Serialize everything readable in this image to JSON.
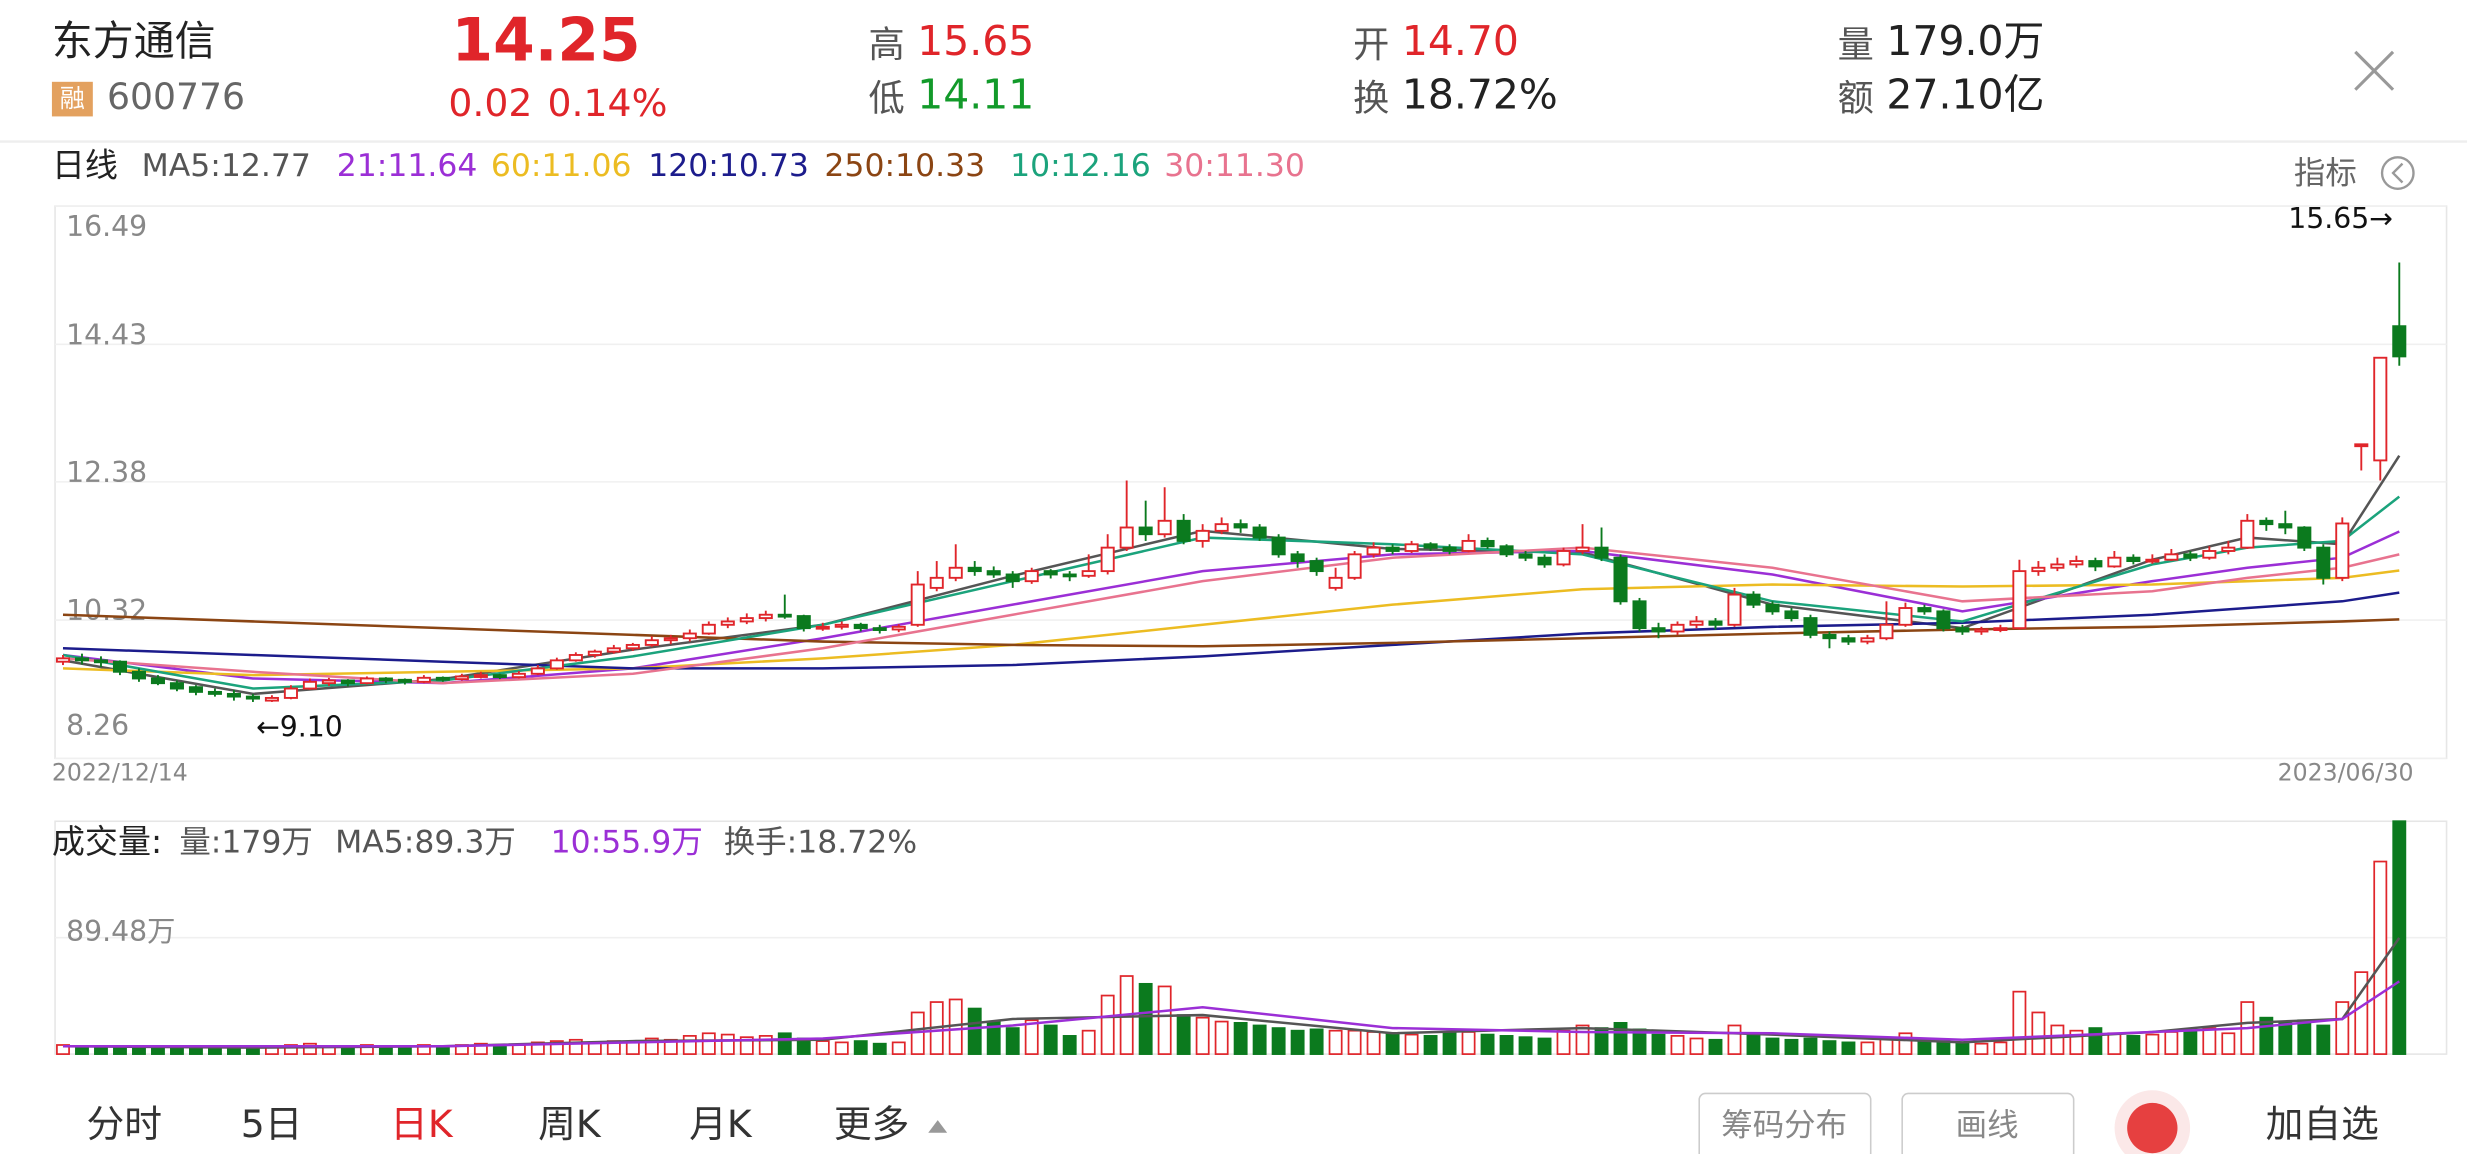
{
  "header": {
    "name": "东方通信",
    "badge": "融",
    "code": "600776",
    "price": "14.25",
    "change": "0.02",
    "change_pct": "0.14%",
    "high_label": "高",
    "high": "15.65",
    "low_label": "低",
    "low": "14.11",
    "open_label": "开",
    "open": "14.70",
    "turnover_label": "换",
    "turnover": "18.72%",
    "volume_label": "量",
    "volume": "179.0万",
    "amount_label": "额",
    "amount": "27.10亿"
  },
  "indicator_button": "指标",
  "tabs": [
    "分时",
    "5日",
    "日K",
    "周K",
    "月K",
    "更多"
  ],
  "buttons": [
    "筹码分布",
    "画线",
    "加自选"
  ],
  "chart_data": [
    {
      "type": "candlestick",
      "title": "日线",
      "ylim": [
        8.26,
        16.49
      ],
      "yticks": [
        16.49,
        14.43,
        12.38,
        10.32,
        8.26
      ],
      "grid": true,
      "date_labels": [
        "2022/12/14",
        "2023/06/30"
      ],
      "max_label": "15.65→",
      "min_label": "←9.10",
      "up_color": "#e0252a",
      "down_color": "#0b7a1e",
      "ohlc": [
        [
          9.7,
          9.8,
          9.65,
          9.75
        ],
        [
          9.75,
          9.82,
          9.66,
          9.72
        ],
        [
          9.72,
          9.78,
          9.62,
          9.7
        ],
        [
          9.7,
          9.72,
          9.5,
          9.55
        ],
        [
          9.55,
          9.6,
          9.4,
          9.45
        ],
        [
          9.45,
          9.5,
          9.35,
          9.38
        ],
        [
          9.38,
          9.42,
          9.26,
          9.3
        ],
        [
          9.32,
          9.35,
          9.2,
          9.25
        ],
        [
          9.25,
          9.3,
          9.18,
          9.22
        ],
        [
          9.22,
          9.28,
          9.12,
          9.18
        ],
        [
          9.18,
          9.22,
          9.1,
          9.15
        ],
        [
          9.12,
          9.2,
          9.1,
          9.16
        ],
        [
          9.16,
          9.35,
          9.14,
          9.3
        ],
        [
          9.3,
          9.45,
          9.28,
          9.4
        ],
        [
          9.38,
          9.46,
          9.34,
          9.42
        ],
        [
          9.42,
          9.44,
          9.33,
          9.38
        ],
        [
          9.38,
          9.48,
          9.36,
          9.45
        ],
        [
          9.45,
          9.47,
          9.38,
          9.43
        ],
        [
          9.43,
          9.45,
          9.36,
          9.4
        ],
        [
          9.4,
          9.5,
          9.38,
          9.46
        ],
        [
          9.46,
          9.48,
          9.4,
          9.44
        ],
        [
          9.44,
          9.52,
          9.42,
          9.48
        ],
        [
          9.48,
          9.55,
          9.45,
          9.5
        ],
        [
          9.5,
          9.52,
          9.44,
          9.47
        ],
        [
          9.47,
          9.56,
          9.45,
          9.52
        ],
        [
          9.52,
          9.65,
          9.5,
          9.6
        ],
        [
          9.6,
          9.76,
          9.58,
          9.72
        ],
        [
          9.72,
          9.84,
          9.7,
          9.8
        ],
        [
          9.8,
          9.88,
          9.76,
          9.85
        ],
        [
          9.85,
          9.95,
          9.82,
          9.9
        ],
        [
          9.9,
          9.98,
          9.86,
          9.95
        ],
        [
          9.95,
          10.08,
          9.92,
          10.02
        ],
        [
          10.02,
          10.1,
          9.96,
          10.05
        ],
        [
          10.05,
          10.18,
          10.0,
          10.12
        ],
        [
          10.12,
          10.3,
          10.1,
          10.25
        ],
        [
          10.25,
          10.36,
          10.2,
          10.3
        ],
        [
          10.3,
          10.42,
          10.26,
          10.35
        ],
        [
          10.35,
          10.46,
          10.3,
          10.4
        ],
        [
          10.4,
          10.7,
          10.34,
          10.38
        ],
        [
          10.38,
          10.4,
          10.15,
          10.2
        ],
        [
          10.2,
          10.28,
          10.16,
          10.22
        ],
        [
          10.22,
          10.3,
          10.18,
          10.25
        ],
        [
          10.25,
          10.28,
          10.15,
          10.2
        ],
        [
          10.2,
          10.25,
          10.12,
          10.18
        ],
        [
          10.18,
          10.26,
          10.14,
          10.22
        ],
        [
          10.25,
          11.05,
          10.22,
          10.85
        ],
        [
          10.8,
          11.2,
          10.75,
          10.95
        ],
        [
          10.95,
          11.45,
          10.9,
          11.1
        ],
        [
          11.1,
          11.2,
          10.98,
          11.05
        ],
        [
          11.05,
          11.12,
          10.95,
          11.0
        ],
        [
          11.0,
          11.05,
          10.8,
          10.9
        ],
        [
          10.9,
          11.1,
          10.86,
          11.05
        ],
        [
          11.05,
          11.08,
          10.94,
          11.0
        ],
        [
          11.0,
          11.05,
          10.9,
          10.98
        ],
        [
          10.98,
          11.3,
          10.95,
          11.05
        ],
        [
          11.05,
          11.6,
          11.0,
          11.4
        ],
        [
          11.4,
          12.4,
          11.35,
          11.7
        ],
        [
          11.7,
          12.1,
          11.5,
          11.6
        ],
        [
          11.6,
          12.3,
          11.55,
          11.8
        ],
        [
          11.8,
          11.9,
          11.45,
          11.5
        ],
        [
          11.5,
          11.75,
          11.4,
          11.65
        ],
        [
          11.65,
          11.85,
          11.6,
          11.75
        ],
        [
          11.75,
          11.82,
          11.62,
          11.7
        ],
        [
          11.7,
          11.75,
          11.5,
          11.55
        ],
        [
          11.55,
          11.6,
          11.25,
          11.3
        ],
        [
          11.3,
          11.35,
          11.1,
          11.2
        ],
        [
          11.2,
          11.25,
          10.98,
          11.05
        ],
        [
          10.8,
          11.1,
          10.76,
          10.95
        ],
        [
          10.95,
          11.35,
          10.92,
          11.3
        ],
        [
          11.3,
          11.48,
          11.25,
          11.4
        ],
        [
          11.4,
          11.45,
          11.3,
          11.35
        ],
        [
          11.35,
          11.5,
          11.32,
          11.45
        ],
        [
          11.45,
          11.48,
          11.35,
          11.4
        ],
        [
          11.4,
          11.45,
          11.3,
          11.35
        ],
        [
          11.35,
          11.6,
          11.33,
          11.5
        ],
        [
          11.5,
          11.55,
          11.38,
          11.42
        ],
        [
          11.42,
          11.45,
          11.26,
          11.3
        ],
        [
          11.3,
          11.35,
          11.2,
          11.25
        ],
        [
          11.25,
          11.3,
          11.1,
          11.15
        ],
        [
          11.15,
          11.4,
          11.12,
          11.35
        ],
        [
          11.35,
          11.75,
          11.3,
          11.4
        ],
        [
          11.4,
          11.7,
          11.2,
          11.25
        ],
        [
          11.25,
          11.3,
          10.55,
          10.6
        ],
        [
          10.6,
          10.65,
          10.15,
          10.2
        ],
        [
          10.2,
          10.28,
          10.05,
          10.15
        ],
        [
          10.15,
          10.3,
          10.1,
          10.25
        ],
        [
          10.25,
          10.38,
          10.2,
          10.3
        ],
        [
          10.3,
          10.35,
          10.18,
          10.25
        ],
        [
          10.25,
          10.8,
          10.22,
          10.7
        ],
        [
          10.7,
          10.75,
          10.5,
          10.55
        ],
        [
          10.55,
          10.6,
          10.4,
          10.45
        ],
        [
          10.45,
          10.5,
          10.3,
          10.35
        ],
        [
          10.35,
          10.4,
          10.05,
          10.1
        ],
        [
          10.1,
          10.15,
          9.9,
          10.05
        ],
        [
          10.05,
          10.1,
          9.95,
          10.0
        ],
        [
          10.0,
          10.1,
          9.96,
          10.05
        ],
        [
          10.05,
          10.6,
          10.02,
          10.25
        ],
        [
          10.25,
          10.58,
          10.22,
          10.5
        ],
        [
          10.5,
          10.55,
          10.4,
          10.45
        ],
        [
          10.45,
          10.48,
          10.15,
          10.2
        ],
        [
          10.2,
          10.25,
          10.1,
          10.15
        ],
        [
          10.15,
          10.22,
          10.1,
          10.18
        ],
        [
          10.18,
          10.25,
          10.14,
          10.2
        ],
        [
          10.2,
          11.22,
          10.18,
          11.05
        ],
        [
          11.05,
          11.2,
          10.98,
          11.1
        ],
        [
          11.1,
          11.25,
          11.05,
          11.15
        ],
        [
          11.15,
          11.28,
          11.1,
          11.2
        ],
        [
          11.2,
          11.25,
          11.05,
          11.12
        ],
        [
          11.12,
          11.35,
          11.1,
          11.25
        ],
        [
          11.25,
          11.3,
          11.15,
          11.2
        ],
        [
          11.2,
          11.3,
          11.16,
          11.22
        ],
        [
          11.22,
          11.38,
          11.2,
          11.3
        ],
        [
          11.3,
          11.35,
          11.2,
          11.25
        ],
        [
          11.25,
          11.42,
          11.22,
          11.35
        ],
        [
          11.35,
          11.5,
          11.3,
          11.4
        ],
        [
          11.4,
          11.9,
          11.38,
          11.8
        ],
        [
          11.8,
          11.85,
          11.65,
          11.75
        ],
        [
          11.75,
          11.95,
          11.6,
          11.7
        ],
        [
          11.7,
          11.72,
          11.35,
          11.4
        ],
        [
          11.4,
          11.45,
          10.85,
          10.95
        ],
        [
          10.95,
          11.85,
          10.9,
          11.76
        ],
        [
          12.94,
          12.94,
          12.55,
          12.94
        ],
        [
          12.7,
          14.23,
          12.4,
          14.23
        ],
        [
          14.7,
          15.65,
          14.11,
          14.25
        ]
      ],
      "ma_index": [
        0,
        10,
        20,
        30,
        40,
        50,
        60,
        70,
        80,
        90,
        100,
        110,
        115,
        120,
        123
      ],
      "series": [
        {
          "name": "MA5:12.77",
          "color": "#555555",
          "values": [
            9.72,
            9.22,
            9.44,
            9.88,
            10.25,
            10.98,
            11.65,
            11.38,
            11.33,
            10.55,
            10.2,
            11.22,
            11.55,
            11.45,
            12.77
          ]
        },
        {
          "name": "21:11.64",
          "color": "#9b2fd6",
          "values": [
            9.8,
            9.45,
            9.38,
            9.6,
            10.05,
            10.55,
            11.05,
            11.3,
            11.35,
            11.0,
            10.45,
            10.9,
            11.1,
            11.25,
            11.64
          ]
        },
        {
          "name": "60:11.06",
          "color": "#ecbc22",
          "values": [
            9.6,
            9.5,
            9.55,
            9.6,
            9.75,
            9.95,
            10.25,
            10.55,
            10.78,
            10.85,
            10.82,
            10.85,
            10.9,
            10.95,
            11.06
          ]
        },
        {
          "name": "120:10.73",
          "color": "#1c1c8c",
          "values": [
            9.9,
            9.8,
            9.7,
            9.6,
            9.6,
            9.65,
            9.78,
            9.95,
            10.12,
            10.22,
            10.28,
            10.4,
            10.5,
            10.6,
            10.73
          ]
        },
        {
          "name": "250:10.33",
          "color": "#8b4513",
          "values": [
            10.4,
            10.3,
            10.2,
            10.1,
            10.0,
            9.95,
            9.93,
            9.98,
            10.05,
            10.12,
            10.18,
            10.22,
            10.26,
            10.3,
            10.33
          ]
        },
        {
          "name": "10:12.16",
          "color": "#1ba37c",
          "values": [
            9.8,
            9.3,
            9.42,
            9.78,
            10.25,
            10.9,
            11.55,
            11.45,
            11.3,
            10.6,
            10.3,
            11.15,
            11.4,
            11.5,
            12.16
          ]
        },
        {
          "name": "30:11.30",
          "color": "#e8738f",
          "values": [
            9.75,
            9.55,
            9.38,
            9.52,
            9.9,
            10.4,
            10.9,
            11.25,
            11.4,
            11.1,
            10.6,
            10.75,
            10.95,
            11.1,
            11.3
          ]
        }
      ]
    },
    {
      "type": "bar",
      "title": "成交量:",
      "volume_text": "量:179万",
      "turnover_text": "换手:18.72%",
      "ylim": [
        0,
        178.96
      ],
      "yticks": [
        {
          "value": 89.48,
          "label": "89.48万"
        }
      ],
      "grid": true,
      "up_color": "#e0252a",
      "down_color": "#0b7a1e",
      "values": [
        7,
        6,
        6,
        5,
        5,
        6,
        5,
        5,
        5,
        6,
        5,
        5,
        7,
        8,
        6,
        6,
        7,
        6,
        5,
        7,
        6,
        7,
        8,
        6,
        7,
        9,
        10,
        11,
        9,
        10,
        9,
        12,
        11,
        14,
        16,
        15,
        13,
        14,
        16,
        12,
        10,
        9,
        10,
        8,
        9,
        32,
        40,
        42,
        35,
        25,
        20,
        26,
        22,
        14,
        18,
        45,
        60,
        54,
        52,
        30,
        28,
        25,
        24,
        22,
        20,
        18,
        19,
        18,
        18,
        17,
        16,
        15,
        14,
        16,
        17,
        15,
        14,
        13,
        12,
        18,
        22,
        20,
        24,
        19,
        15,
        14,
        12,
        11,
        22,
        14,
        12,
        11,
        12,
        10,
        9,
        9,
        12,
        16,
        11,
        10,
        9,
        8,
        9,
        48,
        32,
        22,
        18,
        20,
        16,
        14,
        15,
        17,
        18,
        20,
        16,
        40,
        28,
        24,
        26,
        22,
        40,
        63,
        148,
        179
      ],
      "ma_index": [
        0,
        10,
        20,
        30,
        40,
        50,
        60,
        70,
        80,
        90,
        100,
        110,
        115,
        120,
        123
      ],
      "series": [
        {
          "name": "MA5:89.3万",
          "color": "#555555",
          "values": [
            6,
            5,
            6,
            10,
            11,
            27,
            30,
            16,
            20,
            15,
            9,
            17,
            24,
            27,
            89.3
          ]
        },
        {
          "name": "10:55.9万",
          "color": "#9b2fd6",
          "values": [
            6,
            6,
            6,
            9,
            12,
            22,
            36,
            20,
            17,
            16,
            11,
            17,
            20,
            27,
            55.9
          ]
        }
      ]
    }
  ]
}
